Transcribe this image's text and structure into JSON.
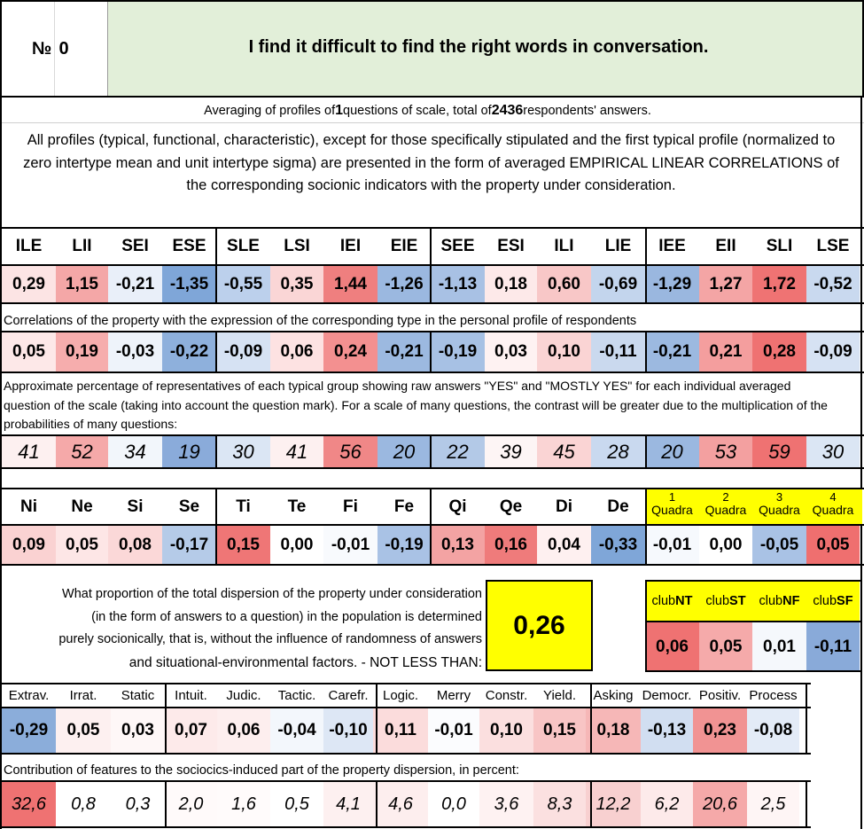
{
  "header": {
    "number_label": "№",
    "number_value": "0",
    "question": "I find it difficult to find the right words in conversation."
  },
  "averaging": {
    "prefix": "Averaging of profiles of ",
    "questions": "1",
    "middle": " questions of scale, total of ",
    "respondents": "2436",
    "suffix": " respondents' answers."
  },
  "intro_text": "All profiles (typical, functional, characteristic), except for those specifically stipulated and the first typical profile (normalized to zero intertype mean and unit intertype sigma) are presented in the form of averaged EMPIRICAL LINEAR CORRELATIONS of the corresponding socionic indicators with the property under consideration.",
  "types": {
    "labels": [
      "ILE",
      "LII",
      "SEI",
      "ESE",
      "SLE",
      "LSI",
      "IEI",
      "EIE",
      "SEE",
      "ESI",
      "ILI",
      "LIE",
      "IEE",
      "EII",
      "SLI",
      "LSE"
    ],
    "profile": [
      "0,29",
      "1,15",
      "-0,21",
      "-1,35",
      "-0,55",
      "0,35",
      "1,44",
      "-1,26",
      "-1,13",
      "0,18",
      "0,60",
      "-0,69",
      "-1,29",
      "1,27",
      "1,72",
      "-0,52"
    ],
    "profile_colors": [
      "#fce4e4",
      "#f4a7a7",
      "#e9eff9",
      "#7fa6d8",
      "#bcd0ec",
      "#fad6d6",
      "#ef7f7f",
      "#9bb8e0",
      "#a8c1e4",
      "#fde9e9",
      "#f8c7c7",
      "#c3d5ed",
      "#9ab7df",
      "#f4a5a5",
      "#ef7373",
      "#c9d9ef"
    ],
    "corr_caption": "Correlations of the property with the expression of the corresponding type in the personal profile of respondents",
    "correlations": [
      "0,05",
      "0,19",
      "-0,03",
      "-0,22",
      "-0,09",
      "0,06",
      "0,24",
      "-0,21",
      "-0,19",
      "0,03",
      "0,10",
      "-0,11",
      "-0,21",
      "0,21",
      "0,28",
      "-0,09"
    ],
    "corr_colors": [
      "#fde8e8",
      "#f6adad",
      "#eef3fa",
      "#8eb0dc",
      "#d6e2f3",
      "#fde2e2",
      "#f39090",
      "#9cb9e0",
      "#a7c1e4",
      "#fef2f2",
      "#fad4d4",
      "#cad9ee",
      "#9cb9e0",
      "#f49e9e",
      "#ef7272",
      "#d6e2f3"
    ],
    "pct_caption": "Approximate percentage of representatives of each typical group showing raw answers \"YES\" and \"MOSTLY YES\" for each individual averaged question of the scale (taking into account the question mark). For a scale of many questions, the contrast will be greater due to the multiplication of the probabilities of many questions:",
    "percentages": [
      "41",
      "52",
      "34",
      "19",
      "30",
      "41",
      "56",
      "20",
      "22",
      "39",
      "45",
      "28",
      "20",
      "53",
      "59",
      "30"
    ],
    "pct_colors": [
      "#fdf0f0",
      "#f5a9a9",
      "#f2f6fb",
      "#8aabda",
      "#dbe6f4",
      "#fdf0f0",
      "#f08787",
      "#9bb8e0",
      "#b3c9e7",
      "#fdf5f5",
      "#fad4d4",
      "#c9d9ef",
      "#9bb8e0",
      "#f3a0a0",
      "#ef7272",
      "#dbe6f4"
    ]
  },
  "functions": {
    "labels": [
      "Ni",
      "Ne",
      "Si",
      "Se",
      "Ti",
      "Te",
      "Fi",
      "Fe",
      "Qi",
      "Qe",
      "Di",
      "De"
    ],
    "values": [
      "0,09",
      "0,05",
      "0,08",
      "-0,17",
      "0,15",
      "0,00",
      "-0,01",
      "-0,19",
      "0,13",
      "0,16",
      "0,04",
      "-0,33"
    ],
    "colors": [
      "#fad2d2",
      "#fde6e6",
      "#fbd8d8",
      "#b5cbe8",
      "#ef7676",
      "#ffffff",
      "#f8fafd",
      "#a9c2e5",
      "#f3a3a3",
      "#ef7b7b",
      "#fef0f0",
      "#7fa6d8"
    ],
    "quadra_labels": [
      [
        "1",
        "Quadra"
      ],
      [
        "2",
        "Quadra"
      ],
      [
        "3",
        "Quadra"
      ],
      [
        "4",
        "Quadra"
      ]
    ],
    "quadra_values": [
      "-0,01",
      "0,00",
      "-0,05",
      "0,05"
    ],
    "quadra_colors": [
      "#f6f9fd",
      "#ffffff",
      "#a9c2e5",
      "#ef6f6f"
    ]
  },
  "dispersion": {
    "text_lines": [
      "What proportion of the total dispersion of the property under consideration",
      "(in the form of answers to a question) in the population is determined",
      "purely socionically, that is, without the influence of randomness of answers",
      "and situational-environmental factors. - NOT LESS THAN:"
    ],
    "value": "0,26"
  },
  "clubs": {
    "labels": [
      [
        "club",
        "NT"
      ],
      [
        "club",
        "ST"
      ],
      [
        "club",
        "NF"
      ],
      [
        "club",
        "SF"
      ]
    ],
    "values": [
      "0,06",
      "0,05",
      "0,01",
      "-0,11"
    ],
    "colors": [
      "#ef7272",
      "#f5aaaa",
      "#f5f8fc",
      "#89aad9"
    ]
  },
  "traits": {
    "labels": [
      "Extrav.",
      "Irrat.",
      "Static",
      "Intuit.",
      "Judic.",
      "Tactic.",
      "Carefr.",
      "Logic.",
      "Merry",
      "Constr.",
      "Yield.",
      "Asking",
      "Democr.",
      "Positiv.",
      "Process"
    ],
    "values": [
      "-0,29",
      "0,05",
      "0,03",
      "0,07",
      "0,06",
      "-0,04",
      "-0,10",
      "0,11",
      "-0,01",
      "0,10",
      "0,15",
      "0,18",
      "-0,13",
      "0,23",
      "-0,08"
    ],
    "colors": [
      "#8badda",
      "#fdf0f0",
      "#fef7f7",
      "#fdeaea",
      "#fdeeee",
      "#f3f7fc",
      "#dde7f5",
      "#fbdcdc",
      "#fbfcfe",
      "#fbdfdf",
      "#f8c5c5",
      "#f6b7b7",
      "#d1def1",
      "#f19393",
      "#e3ebf7"
    ],
    "contrib_caption": "Contribution of features to the sociocics-induced part of the property dispersion, in percent:",
    "contributions": [
      "32,6",
      "0,8",
      "0,3",
      "2,0",
      "1,6",
      "0,5",
      "4,1",
      "4,6",
      "0,0",
      "3,6",
      "8,3",
      "12,2",
      "6,2",
      "20,6",
      "2,5"
    ],
    "contrib_colors": [
      "#ef7272",
      "#ffffff",
      "#ffffff",
      "#fffafa",
      "#fffbfb",
      "#ffffff",
      "#fdf0f0",
      "#fdeeee",
      "#ffffff",
      "#fef2f2",
      "#fbe0e0",
      "#f8d0d0",
      "#fdeaea",
      "#f5a9a9",
      "#fef5f5"
    ]
  },
  "colors": {
    "header_bg": "#e2efd9",
    "yellow": "#ffff00",
    "border": "#000000"
  }
}
